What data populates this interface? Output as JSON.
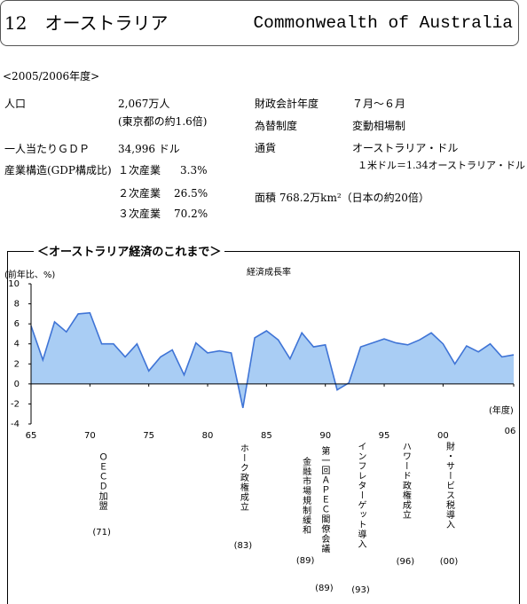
{
  "header": {
    "number_title": "12　オーストラリア",
    "english_name": "Commonwealth of Australia"
  },
  "period": "<2005/2006年度>",
  "left": [
    {
      "label": "人口",
      "value": "2,067万人",
      "note": "(東京都の約1.6倍)"
    },
    {
      "label": "一人当たりＧＤＰ",
      "value": "34,996 ドル"
    }
  ],
  "industry": {
    "label": "産業構造(GDP構成比)",
    "rows": [
      [
        "１次産業",
        "3.3%"
      ],
      [
        "２次産業",
        "26.5%"
      ],
      [
        "３次産業",
        "70.2%"
      ]
    ]
  },
  "right": [
    {
      "label": "財政会計年度",
      "value": "７月～６月"
    },
    {
      "label": "為替制度",
      "value": "変動相場制"
    },
    {
      "label": "通貨",
      "value": "オーストラリア・ドル",
      "note": "１米ドル＝1.34オーストラリア・ドル"
    }
  ],
  "area": "面積 768.2万km²（日本の約20倍）",
  "chart_data": {
    "type": "area",
    "box_title": "＜オーストラリア経済のこれまで＞",
    "title": "経済成長率",
    "y_label": "(前年比、%)",
    "x_label": "(年度)",
    "x": [
      65,
      66,
      67,
      68,
      69,
      70,
      71,
      72,
      73,
      74,
      75,
      76,
      77,
      78,
      79,
      80,
      81,
      82,
      83,
      84,
      85,
      86,
      87,
      88,
      89,
      90,
      91,
      92,
      93,
      94,
      95,
      96,
      97,
      98,
      99,
      100,
      101,
      102,
      103,
      104,
      105,
      106
    ],
    "values": [
      5.8,
      2.4,
      6.2,
      5.2,
      7.0,
      7.1,
      4.0,
      4.0,
      2.7,
      4.0,
      1.3,
      2.7,
      3.4,
      0.9,
      4.1,
      3.1,
      3.3,
      3.1,
      -2.4,
      4.6,
      5.3,
      4.4,
      2.5,
      5.1,
      3.7,
      3.9,
      -0.6,
      0.1,
      3.7,
      4.1,
      4.5,
      4.1,
      3.9,
      4.4,
      5.1,
      4.0,
      2.0,
      3.8,
      3.2,
      4.0,
      2.7,
      2.9
    ],
    "color": "#3f74d6",
    "fill_color": "#a9cdf4",
    "xlim": [
      65,
      106
    ],
    "ylim": [
      -4,
      10
    ],
    "xticks": [
      65,
      70,
      75,
      80,
      85,
      90,
      95,
      {
        "value": 100,
        "label": "00"
      },
      {
        "value": 106,
        "label": "06"
      }
    ],
    "yticks": [
      -4,
      -2,
      0,
      2,
      4,
      6,
      8,
      10
    ],
    "annotations": [
      {
        "text": "ＯＥＣＤ加盟",
        "label": "(71)",
        "x": 71
      },
      {
        "text": "ホーク政権成立",
        "label": "(83)",
        "x": 83
      },
      {
        "text": "金融市場規制緩和",
        "label": "(89)",
        "x": 88.3
      },
      {
        "text": "第一回ＡＰＥＣ閣僚会議",
        "label": "(89)",
        "x": 89.9
      },
      {
        "text": "インフレターゲット導入",
        "label": "(93)",
        "x": 93
      },
      {
        "text": "ハワード政権成立",
        "label": "(96)",
        "x": 96.8
      },
      {
        "text": "財・サービス税導入",
        "label": "(00)",
        "x": 100.5
      }
    ]
  }
}
